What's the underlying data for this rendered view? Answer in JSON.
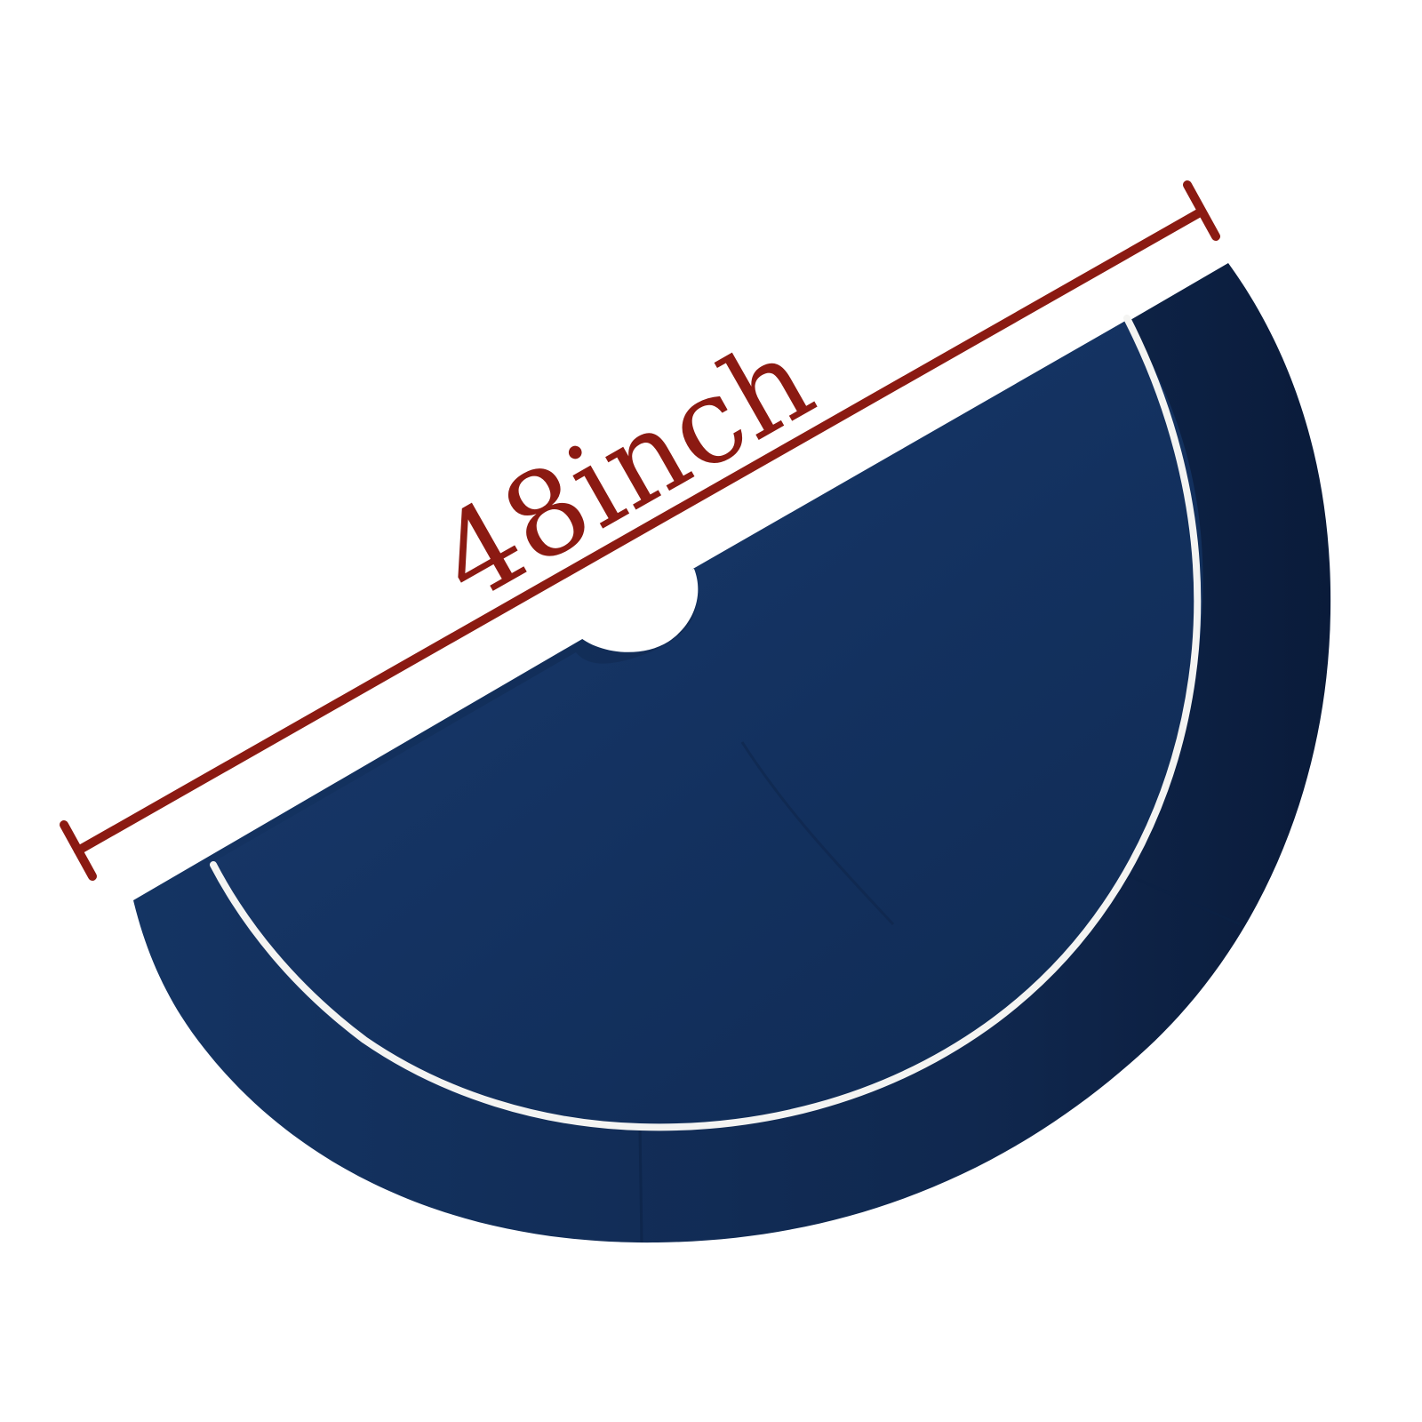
{
  "measurement": {
    "label": "48inch"
  },
  "colors": {
    "background": "#ffffff",
    "dimension": "#8b1a12",
    "fabric_main": "#13315f",
    "fabric_border": "#10284f",
    "fabric_border_dark": "#0b1d3d",
    "piping": "#f4f4f2"
  }
}
